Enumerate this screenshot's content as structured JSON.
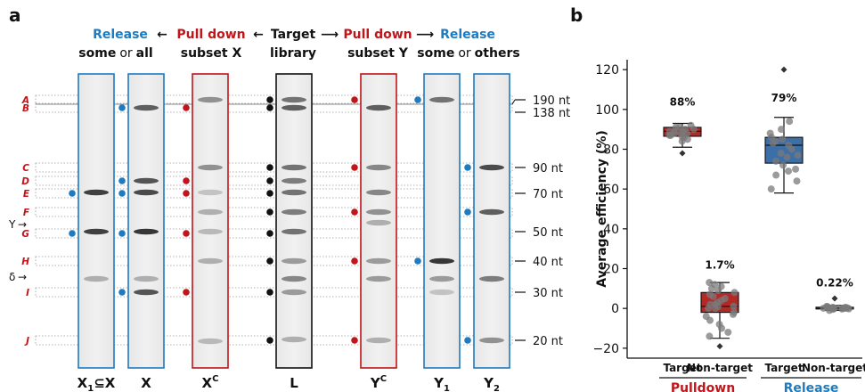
{
  "panel_a": {
    "label": "a",
    "header": {
      "release_left": "Release",
      "pulldown_left": "Pull down",
      "target": "Target",
      "library": "library",
      "pulldown_right": "Pull down",
      "release_right": "Release",
      "some": "some",
      "or": "or",
      "all": "all",
      "subset_x": "subset X",
      "subset_y": "subset Y",
      "others": "others"
    },
    "arrow_glyph": "←",
    "arrow_glyph_right": "⟶",
    "lanes": [
      {
        "label": "X",
        "sub": "1",
        "extra": "⊆X",
        "frame": "#1f7bbf"
      },
      {
        "label": "X",
        "sub": "",
        "extra": "",
        "frame": "#1f7bbf"
      },
      {
        "label": "X",
        "sup": "C",
        "frame": "#c0151a"
      },
      {
        "label": "L",
        "frame": "#111111"
      },
      {
        "label": "Y",
        "sup": "C",
        "frame": "#c0151a"
      },
      {
        "label": "Y",
        "sub": "1",
        "frame": "#1f7bbf"
      },
      {
        "label": "Y",
        "sub": "2",
        "frame": "#1f7bbf"
      }
    ],
    "row_letters": [
      "A",
      "B",
      "C",
      "D",
      "E",
      "F",
      "G",
      "H",
      "I",
      "J"
    ],
    "size_markers": [
      "190 nt",
      "138 nt",
      "90 nt",
      "70 nt",
      "50 nt",
      "40 nt",
      "30 nt",
      "20 nt"
    ],
    "side_marks": [
      "Y",
      "δ"
    ],
    "colors": {
      "blue": "#1f7bbf",
      "red": "#c0151a",
      "black": "#111111",
      "row_letter": "#c0151a"
    }
  },
  "panel_b": {
    "label": "b",
    "chart_data": {
      "type": "box",
      "ylabel": "Average efficiency (%)",
      "ylim": [
        -25,
        125
      ],
      "yticks": [
        -20,
        0,
        20,
        40,
        60,
        80,
        100,
        120
      ],
      "categories": [
        "Target",
        "Non-target",
        "Target",
        "Non-target"
      ],
      "groups": [
        {
          "name": "Pulldown",
          "color": "#c0151a",
          "categories": [
            "Target",
            "Non-target"
          ]
        },
        {
          "name": "Release",
          "color": "#1f7bbf",
          "categories": [
            "Target",
            "Non-target"
          ]
        }
      ],
      "boxes": [
        {
          "group": "Pulldown",
          "category": "Target",
          "median": 89,
          "q1": 86.5,
          "q3": 91,
          "whisker_low": 81,
          "whisker_high": 93,
          "outliers": [
            78
          ],
          "annotation": "88%",
          "fill": "#b22a26",
          "points": [
            84,
            86,
            87,
            88,
            88,
            89,
            89,
            90,
            90,
            91,
            91,
            92,
            88,
            87,
            86,
            89,
            85
          ]
        },
        {
          "group": "Pulldown",
          "category": "Non-target",
          "median": 1,
          "q1": -2,
          "q3": 8,
          "whisker_low": -15,
          "whisker_high": 13,
          "outliers": [
            -19
          ],
          "annotation": "1.7%",
          "fill": "#b22a26",
          "points": [
            -14,
            -10,
            -8,
            -6,
            -4,
            -3,
            -2,
            0,
            1,
            1,
            2,
            3,
            4,
            5,
            6,
            7,
            8,
            9,
            10,
            11,
            12,
            13,
            -12,
            0,
            2
          ]
        },
        {
          "group": "Release",
          "category": "Target",
          "median": 82,
          "q1": 73,
          "q3": 86,
          "whisker_low": 58,
          "whisker_high": 96,
          "outliers": [
            120
          ],
          "annotation": "79%",
          "fill": "#3c6ea8",
          "points": [
            60,
            64,
            67,
            70,
            72,
            74,
            76,
            78,
            80,
            82,
            83,
            84,
            85,
            86,
            88,
            90,
            94,
            69,
            77
          ]
        },
        {
          "group": "Release",
          "category": "Non-target",
          "median": 0,
          "q1": -0.3,
          "q3": 0.6,
          "whisker_low": -1,
          "whisker_high": 1.5,
          "outliers": [
            5
          ],
          "annotation": "0.22%",
          "fill": "#3c6ea8",
          "points": [
            -1,
            -0.5,
            0,
            0,
            0.2,
            0.3,
            0.5,
            0.8,
            1,
            -0.3,
            0.1,
            0.4,
            0,
            0.6,
            -0.2,
            0.2,
            0.1
          ]
        }
      ]
    }
  }
}
